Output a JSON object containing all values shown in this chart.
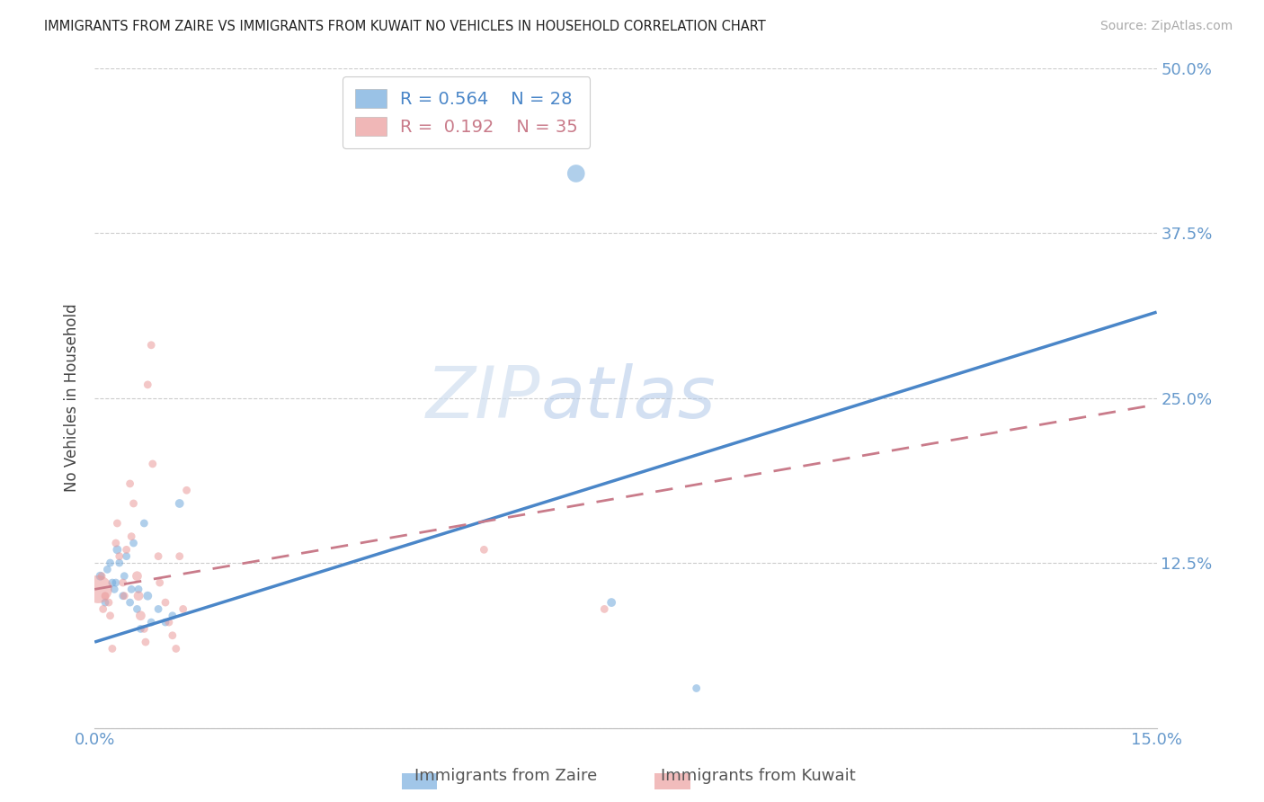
{
  "title": "IMMIGRANTS FROM ZAIRE VS IMMIGRANTS FROM KUWAIT NO VEHICLES IN HOUSEHOLD CORRELATION CHART",
  "source": "Source: ZipAtlas.com",
  "ylabel": "No Vehicles in Household",
  "xmin": 0.0,
  "xmax": 0.15,
  "ymin": 0.0,
  "ymax": 0.5,
  "color_zaire": "#6fa8dc",
  "color_kuwait": "#ea9999",
  "color_zaire_line": "#4a86c8",
  "color_kuwait_line": "#c97b8a",
  "color_axis_labels": "#6699cc",
  "watermark_zip": "ZIP",
  "watermark_atlas": "atlas",
  "legend_text_zaire": "R = 0.564    N = 28",
  "legend_text_kuwait": "R =  0.192    N = 35",
  "zaire_points_x": [
    0.0008,
    0.0015,
    0.0018,
    0.0022,
    0.0025,
    0.0028,
    0.003,
    0.0032,
    0.0035,
    0.004,
    0.0042,
    0.0045,
    0.005,
    0.0052,
    0.0055,
    0.006,
    0.0062,
    0.0065,
    0.007,
    0.0075,
    0.008,
    0.009,
    0.01,
    0.011,
    0.012,
    0.068,
    0.073,
    0.085
  ],
  "zaire_points_y": [
    0.115,
    0.095,
    0.12,
    0.125,
    0.11,
    0.105,
    0.11,
    0.135,
    0.125,
    0.1,
    0.115,
    0.13,
    0.095,
    0.105,
    0.14,
    0.09,
    0.105,
    0.075,
    0.155,
    0.1,
    0.08,
    0.09,
    0.08,
    0.085,
    0.17,
    0.42,
    0.095,
    0.03
  ],
  "zaire_sizes": [
    50,
    40,
    40,
    40,
    40,
    40,
    40,
    50,
    40,
    40,
    40,
    40,
    40,
    40,
    40,
    40,
    40,
    40,
    40,
    50,
    40,
    40,
    40,
    40,
    50,
    200,
    50,
    40
  ],
  "kuwait_points_x": [
    0.0005,
    0.001,
    0.0012,
    0.0015,
    0.002,
    0.0022,
    0.0025,
    0.003,
    0.0032,
    0.0035,
    0.004,
    0.0042,
    0.0045,
    0.005,
    0.0052,
    0.0055,
    0.006,
    0.0062,
    0.0065,
    0.007,
    0.0072,
    0.0075,
    0.008,
    0.0082,
    0.009,
    0.0092,
    0.01,
    0.0105,
    0.011,
    0.0115,
    0.012,
    0.0125,
    0.013,
    0.055,
    0.072
  ],
  "kuwait_points_y": [
    0.105,
    0.115,
    0.09,
    0.1,
    0.095,
    0.085,
    0.06,
    0.14,
    0.155,
    0.13,
    0.11,
    0.1,
    0.135,
    0.185,
    0.145,
    0.17,
    0.115,
    0.1,
    0.085,
    0.075,
    0.065,
    0.26,
    0.29,
    0.2,
    0.13,
    0.11,
    0.095,
    0.08,
    0.07,
    0.06,
    0.13,
    0.09,
    0.18,
    0.135,
    0.09
  ],
  "kuwait_sizes": [
    500,
    40,
    40,
    40,
    40,
    40,
    40,
    40,
    40,
    40,
    40,
    40,
    40,
    40,
    40,
    40,
    60,
    60,
    60,
    40,
    40,
    40,
    40,
    40,
    40,
    40,
    40,
    40,
    40,
    40,
    40,
    40,
    40,
    40,
    40
  ],
  "zaire_line_x": [
    0.0,
    0.15
  ],
  "zaire_line_y": [
    0.065,
    0.315
  ],
  "kuwait_line_x": [
    0.0,
    0.15
  ],
  "kuwait_line_y": [
    0.105,
    0.245
  ]
}
